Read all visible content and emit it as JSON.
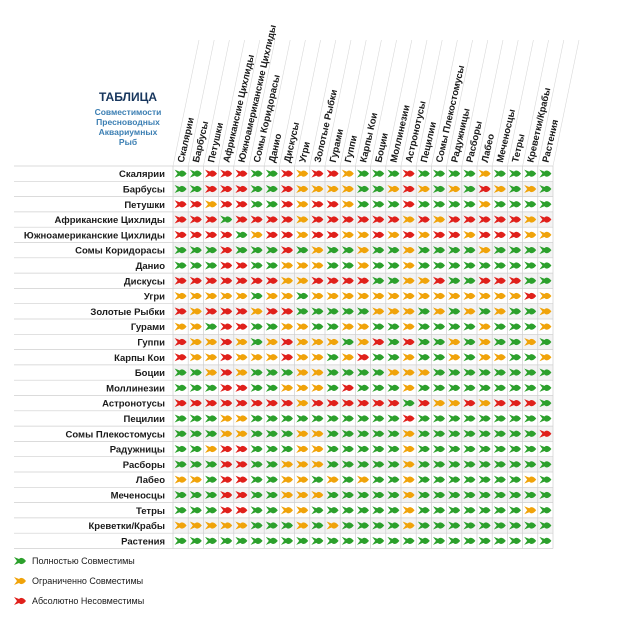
{
  "title": {
    "main": "ТАБЛИЦА",
    "sub": [
      "Совместимости",
      "Пресноводных",
      "Аквариумных",
      "Рыб"
    ]
  },
  "colors": {
    "G": "#2ca02c",
    "O": "#f0a30a",
    "R": "#e0201b"
  },
  "legend": [
    {
      "key": "G",
      "label": "Полностью  Совместимы"
    },
    {
      "key": "O",
      "label": "Ограниченно  Совместимы"
    },
    {
      "key": "R",
      "label": "Абсолютно  Несовместимы"
    }
  ],
  "chart_data": {
    "type": "table",
    "species": [
      "Скалярии",
      "Барбусы",
      "Петушки",
      "Африканские Цихлиды",
      "Южноамериканские Цихлиды",
      "Сомы Коридорасы",
      "Данио",
      "Дискусы",
      "Угри",
      "Золотые Рыбки",
      "Гурами",
      "Гуппи",
      "Карпы Кои",
      "Боции",
      "Моллинезии",
      "Астронотусы",
      "Пецилии",
      "Сомы Плекостомусы",
      "Радужницы",
      "Расборы",
      "Лабео",
      "Меченосцы",
      "Тетры",
      "Креветки/Крабы",
      "Растения"
    ],
    "row_labels": [
      "Скалярии",
      "Барбусы",
      "Петушки",
      "Африканские Цихлиды",
      "Южноамериканские Цихлиды",
      "Сомы Коридорасы",
      "Данио",
      "Дискусы",
      "Угри",
      "Золотые Рыбки",
      "Гурами",
      "Гуппи",
      "Карпы Кои",
      "Боции",
      "Моллинезии",
      "Астронотусы",
      "Пецилии",
      "Сомы Плекостомусы",
      "Радужницы",
      "Расборы",
      "Лабео",
      "Меченосцы",
      "Тетры",
      "Креветки/Крабы",
      "Растения"
    ],
    "matrix": [
      "GGRRRGGRORROGGGRGGGGOGGGG",
      "GGRRRGGROOOOGGOROGOGROGOG",
      "RRORRGGRORROGGGRGGGGOGGGG",
      "RRRGRRRRORRRRRRORORRRRROR",
      "RRRRGORRORROORORORRORRROO",
      "GGGRGGGRGOGGOGGOGGGGOGGGG",
      "GGGRRGGOOOGGOGGOGGGGGGGGG",
      "RRRRRRROORRRRGGOORGGRRRGG",
      "OOOOOGOOGOOOOOOOOOOOOOORO",
      "RORRRORRGGGGGOOOGOGOGOGGO",
      "OOGRRGGOOGGOOGGOGGGGOGGGO",
      "ROOROGOROOOGORGRGGOGOGGOG",
      "ROOROOOROOGORGGOGGOGOOGGO",
      "GGOROGGGOOGGGGOOOGGGGGGGG",
      "GGGRRGGOOOGRGGGOGGGGGGGGG",
      "RRRRRRRRORRRRRRGROORORRRG",
      "GGGOOGGGGGGGGGGRGGGGGGGGG",
      "GGGOOGGGOOGGGGGOGGGGGGGGR",
      "GGORRGGGOOGGGGGOGGGGGGGGG",
      "GGGRRGGOOOGGGGGOGGGGGGGGG",
      "OOGRRGGOOGOGOGGOGGGGGGGOG",
      "GGGRRGGOOOGGGGGOGGGGGGGGG",
      "GGGRRGGOOGGGGGGOGGGGGGGOG",
      "OOOOOGGGOGOGGGGOGGGGGGGGG",
      "GGGGGGGGGGGGGGGGGGGGGGGGG"
    ]
  }
}
